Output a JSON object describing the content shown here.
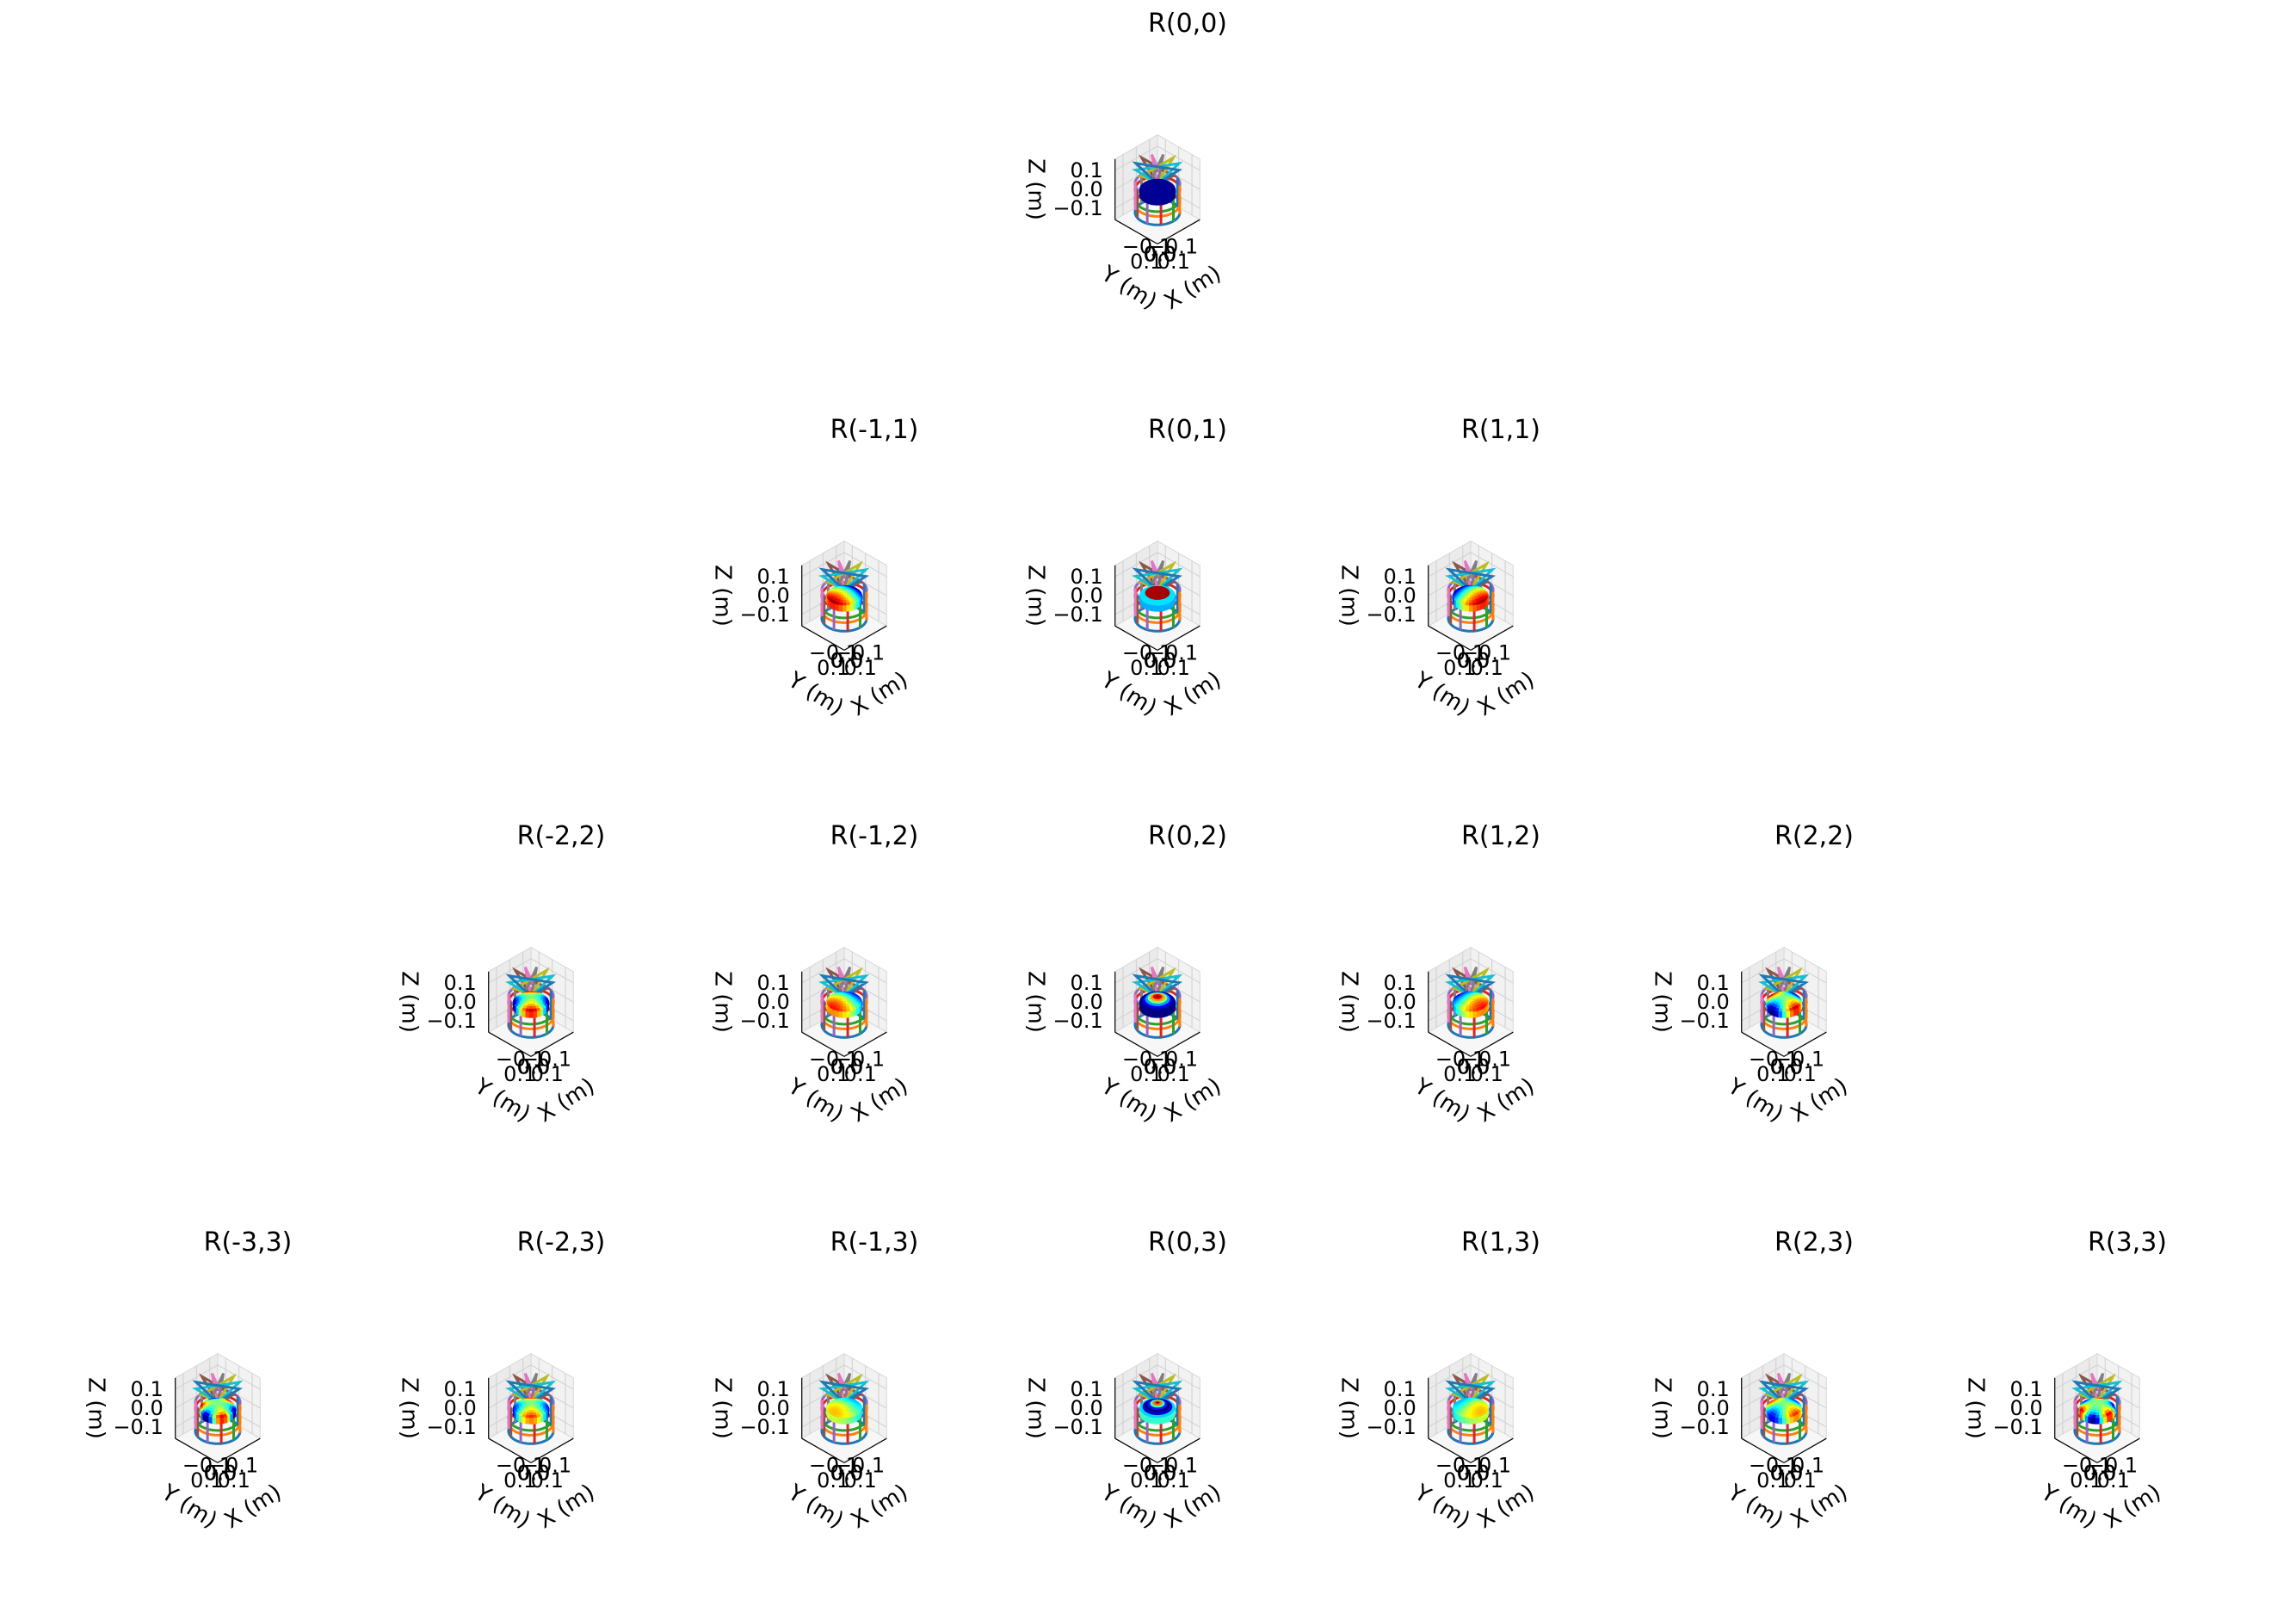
{
  "chart_data": {
    "type": "surface3d",
    "description_axes": {
      "xlabel": "X (m)",
      "ylabel": "Y (m)",
      "zlabel": "Z (m)",
      "x_ticks": [
        "−0.1",
        "0.0",
        "0.1"
      ],
      "y_ticks": [
        "−0.1",
        "0.0",
        "0.1"
      ],
      "z_ticks": [
        "0.1",
        "0.0",
        "−0.1"
      ],
      "xlim": [
        -0.15,
        0.15
      ],
      "ylim": [
        -0.15,
        0.15
      ],
      "zlim": [
        -0.15,
        0.15
      ]
    },
    "colormap": "jet",
    "grid": true,
    "rows": [
      {
        "l": 0,
        "panels": [
          {
            "title": "R(0,0)",
            "m": 0
          }
        ]
      },
      {
        "l": 1,
        "panels": [
          {
            "title": "R(-1,1)",
            "m": -1
          },
          {
            "title": "R(0,1)",
            "m": 0
          },
          {
            "title": "R(1,1)",
            "m": 1
          }
        ]
      },
      {
        "l": 2,
        "panels": [
          {
            "title": "R(-2,2)",
            "m": -2
          },
          {
            "title": "R(-1,2)",
            "m": -1
          },
          {
            "title": "R(0,2)",
            "m": 0
          },
          {
            "title": "R(1,2)",
            "m": 1
          },
          {
            "title": "R(2,2)",
            "m": 2
          }
        ]
      },
      {
        "l": 3,
        "panels": [
          {
            "title": "R(-3,3)",
            "m": -3
          },
          {
            "title": "R(-2,3)",
            "m": -2
          },
          {
            "title": "R(-1,3)",
            "m": -1
          },
          {
            "title": "R(0,3)",
            "m": 0
          },
          {
            "title": "R(1,3)",
            "m": 1
          },
          {
            "title": "R(2,3)",
            "m": 2
          },
          {
            "title": "R(3,3)",
            "m": 3
          }
        ]
      }
    ],
    "cage_colors": [
      "#1f77b4",
      "#ff7f0e",
      "#2ca02c",
      "#d62728",
      "#9467bd",
      "#8c564b",
      "#e377c2",
      "#7f7f7f",
      "#bcbd22",
      "#17becf"
    ]
  }
}
